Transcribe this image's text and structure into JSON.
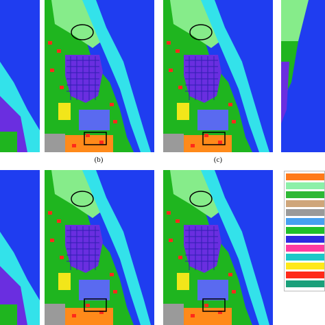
{
  "captions": {
    "b": "(b)",
    "c": "(c)"
  },
  "colors": {
    "water": "#1f3df0",
    "shallow": "#33e2ea",
    "veg": "#86ec8a",
    "crop": "#1fb51f",
    "urban": "#ff2a1a",
    "purple": "#6a2ee0",
    "yellow": "#f2e61a",
    "orange": "#ff8a1a",
    "gray": "#9a9a9a"
  },
  "legend_colors": [
    "#ff7a1a",
    "#8cf0a8",
    "#2eb835",
    "#cfa67a",
    "#9a9a9a",
    "#46a0f0",
    "#20bf2a",
    "#2d2ae0",
    "#ff3aa0",
    "#1ac8c8",
    "#ffe81a",
    "#ff2a1a",
    "#1aa07a"
  ]
}
